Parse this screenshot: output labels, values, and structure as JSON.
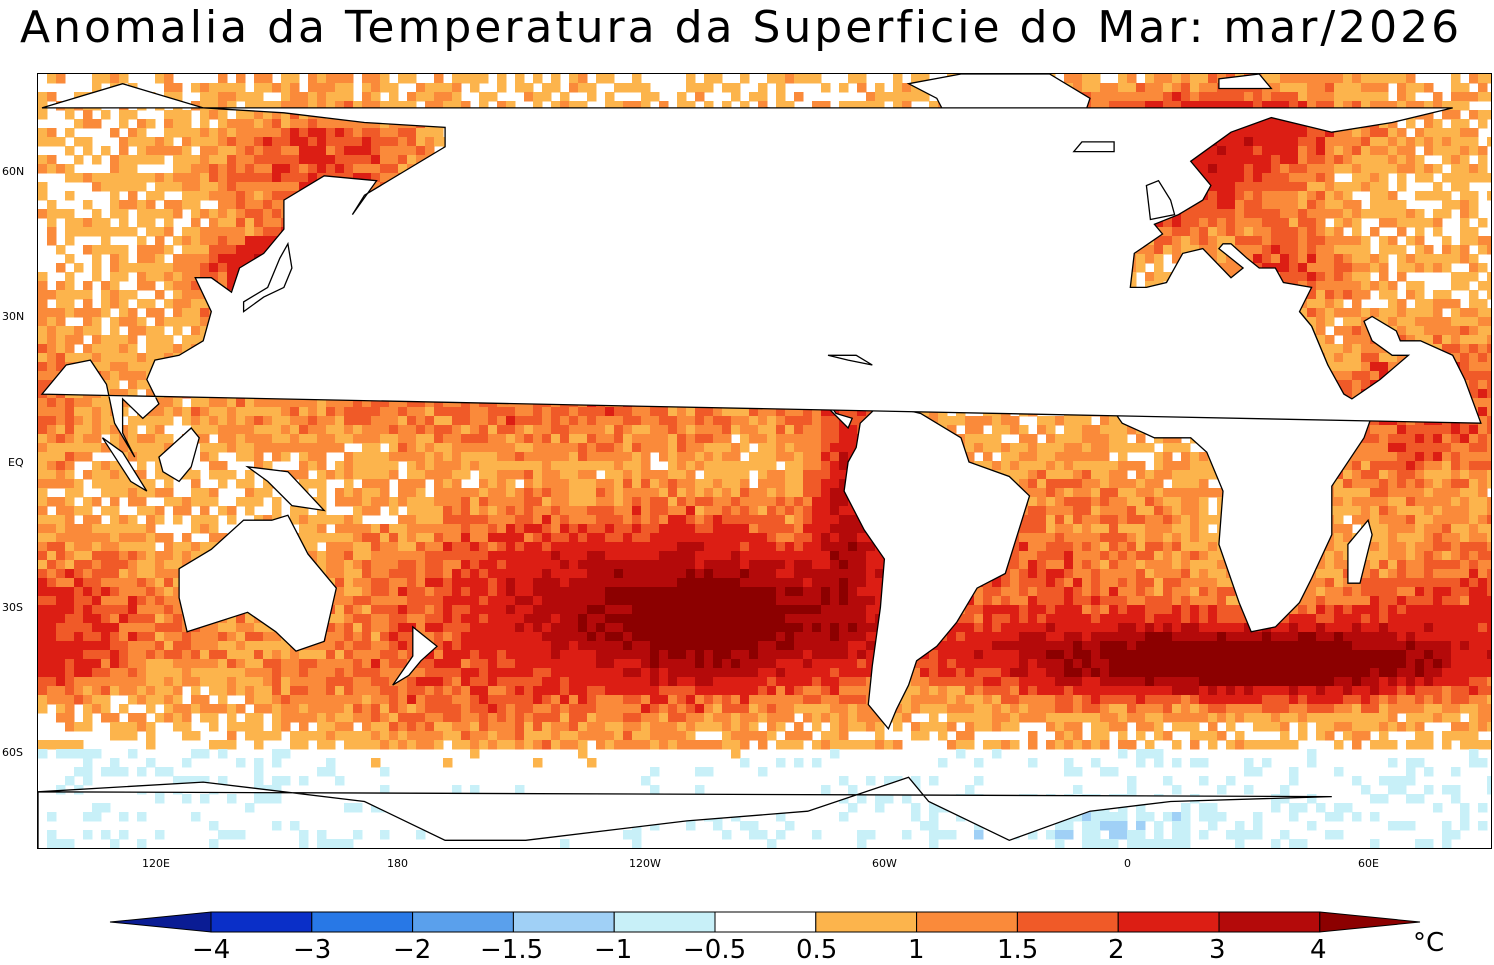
{
  "title": "Anomalia da Temperatura da Superficie do Mar: mar/2026",
  "lat_labels": [
    "60N",
    "30N",
    "EQ",
    "30S",
    "60S"
  ],
  "lon_labels": [
    "120E",
    "180",
    "120W",
    "60W",
    "0",
    "60E"
  ],
  "colorbar": {
    "labels": [
      "−4",
      "−3",
      "−2",
      "−1.5",
      "−1",
      "−0.5",
      "0.5",
      "1",
      "1.5",
      "2",
      "3",
      "4"
    ],
    "unit": "°C",
    "colors": [
      "#0a1c94",
      "#0a2fc8",
      "#2878e6",
      "#5aa0ec",
      "#a0d0f6",
      "#c8f0f8",
      "#ffffff",
      "#fcb44c",
      "#fa8a3a",
      "#f05a28",
      "#dc1e14",
      "#b40a0a",
      "#8c0000"
    ]
  },
  "legend_values": [
    -4,
    -3,
    -2,
    -1.5,
    -1,
    -0.5,
    0.5,
    1,
    1.5,
    2,
    3,
    4
  ],
  "palette": {
    "frame": "#000000",
    "land": "#ffffff",
    "coast": "#000000"
  }
}
